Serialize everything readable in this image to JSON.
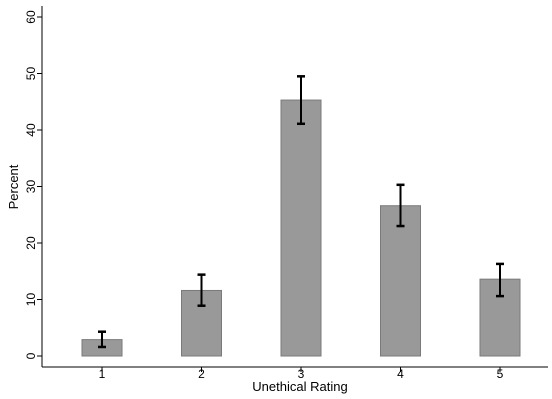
{
  "chart_data": {
    "type": "bar",
    "title": "",
    "xlabel": "Unethical Rating",
    "ylabel": "Percent",
    "categories": [
      "1",
      "2",
      "3",
      "4",
      "5"
    ],
    "values": [
      2.9,
      11.6,
      45.3,
      26.6,
      13.6
    ],
    "error_low": [
      1.6,
      8.9,
      41.1,
      23.0,
      10.6
    ],
    "error_high": [
      4.3,
      14.4,
      49.5,
      30.3,
      16.3
    ],
    "ylim": [
      0,
      60
    ],
    "yticks": [
      0,
      10,
      20,
      30,
      40,
      50,
      60
    ],
    "grid": false,
    "bar_color": "#999999",
    "bar_edge_color": "#7a7a7a",
    "error_bar_color": "#000000"
  }
}
